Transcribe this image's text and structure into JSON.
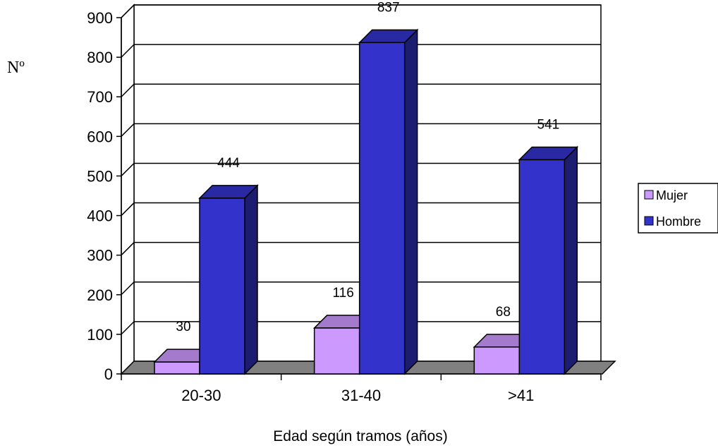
{
  "chart_data": {
    "type": "bar",
    "categories": [
      "20-30",
      "31-40",
      ">41"
    ],
    "series": [
      {
        "name": "Mujer",
        "values": [
          30,
          116,
          68
        ],
        "color": "#cc99ff"
      },
      {
        "name": "Hombre",
        "values": [
          444,
          837,
          541
        ],
        "color": "#3333cc"
      }
    ],
    "data_labels": [
      [
        "30",
        "116",
        "68"
      ],
      [
        "444",
        "837",
        "541"
      ]
    ],
    "xlabel": "Edad según tramos (años)",
    "ylabel": "Nº",
    "ylim": [
      0,
      900
    ],
    "yticks": [
      "0",
      "100",
      "200",
      "300",
      "400",
      "500",
      "600",
      "700",
      "800",
      "900"
    ],
    "grid": true,
    "legend_position": "right",
    "style": "3d-clustered-column"
  }
}
